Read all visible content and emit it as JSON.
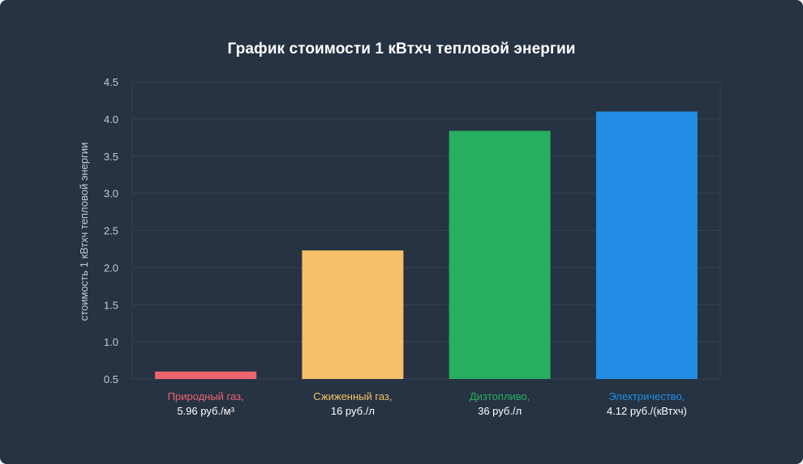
{
  "chart_data": {
    "type": "bar",
    "title": "График стоимости 1 кВтхч тепловой энергии",
    "xlabel": "",
    "ylabel": "стоимость 1 кВтхч тепловой энергии",
    "ylim": [
      0.5,
      4.5
    ],
    "yticks": [
      "0.5",
      "1.0",
      "1.5",
      "2.0",
      "2.5",
      "3.0",
      "3.5",
      "4.0",
      "4.5"
    ],
    "grid": true,
    "categories": [
      {
        "label": "Природный газ,",
        "sublabel": "5.96 руб./м³",
        "color": "#ed6470"
      },
      {
        "label": "Сжиженный газ,",
        "sublabel": "16 руб./л",
        "color": "#f5c067"
      },
      {
        "label": "Дизтопливо,",
        "sublabel": "36 руб./л",
        "color": "#27ae60"
      },
      {
        "label": "Электричество,",
        "sublabel": "4.12 руб./(кВтхч)",
        "color": "#228de2"
      }
    ],
    "values": [
      0.6,
      2.23,
      3.84,
      4.1
    ]
  },
  "colors": {
    "background": "#263343",
    "grid": "#34424f",
    "text": "#ffffff",
    "tick": "#c3cad3"
  }
}
